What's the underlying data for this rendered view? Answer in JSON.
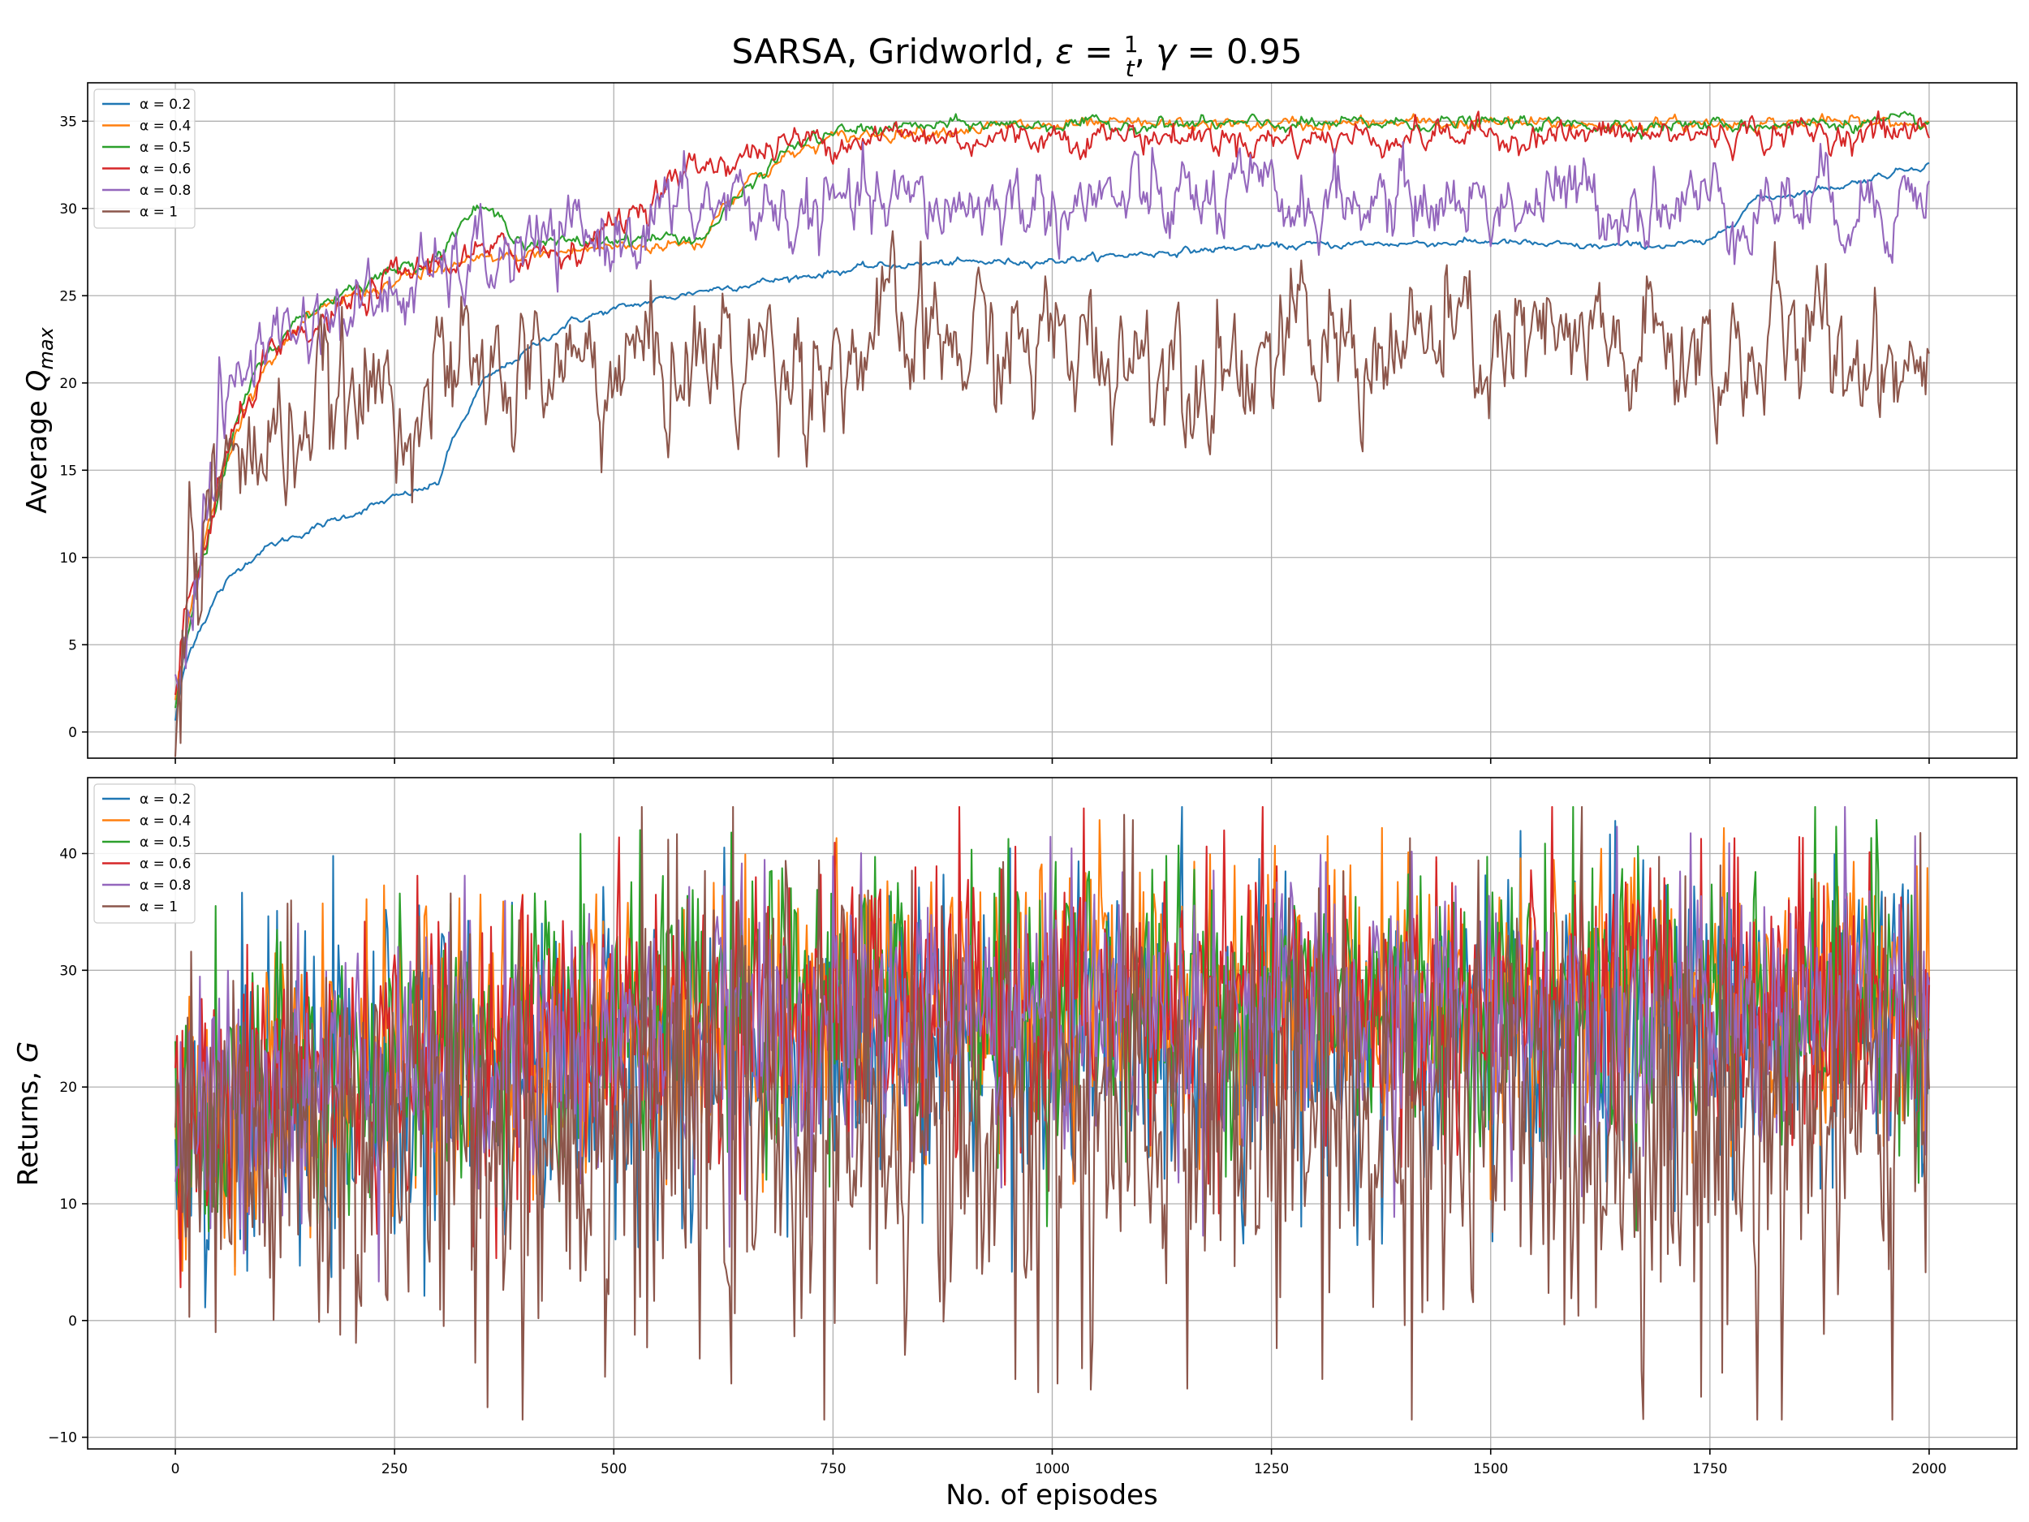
{
  "figure": {
    "title": "SARSA, Gridworld, ε = 1/t, γ = 0.95",
    "xlabel": "No. of episodes"
  },
  "chart_data": [
    {
      "type": "line",
      "title": "",
      "xlabel": "",
      "ylabel": "Average Q_max",
      "xlim": [
        -100,
        2100
      ],
      "ylim": [
        -1.5,
        37.2
      ],
      "x_ticks": [
        0,
        250,
        500,
        750,
        1000,
        1250,
        1500,
        1750,
        2000
      ],
      "x_tick_labels_visible": false,
      "y_ticks": [
        0,
        5,
        10,
        15,
        20,
        25,
        30,
        35
      ],
      "grid": true,
      "legend_position": "upper-left",
      "noise": "moderate",
      "series": [
        {
          "name": "α = 0.2",
          "color": "#1f77b4",
          "x": [
            0,
            10,
            25,
            50,
            75,
            100,
            150,
            200,
            250,
            300,
            310,
            350,
            400,
            450,
            500,
            600,
            700,
            800,
            900,
            1000,
            1100,
            1200,
            1300,
            1400,
            1500,
            1600,
            1700,
            1750,
            1800,
            1900,
            2000
          ],
          "values": [
            0.7,
            3.5,
            5.8,
            8.0,
            9.5,
            10.5,
            11.5,
            12.5,
            13.4,
            14.2,
            16.0,
            20.0,
            21.8,
            23.5,
            24.2,
            25.3,
            26.0,
            26.7,
            26.9,
            27.0,
            27.4,
            27.7,
            27.9,
            28.0,
            28.1,
            27.8,
            27.9,
            28.0,
            30.5,
            31.3,
            32.6
          ]
        },
        {
          "name": "α = 0.4",
          "color": "#ff7f0e",
          "x": [
            0,
            10,
            25,
            50,
            75,
            100,
            150,
            200,
            300,
            350,
            400,
            500,
            600,
            620,
            650,
            700,
            750,
            800,
            900,
            1000,
            1100,
            1200,
            1300,
            1400,
            1500,
            1600,
            1700,
            1800,
            1900,
            2000
          ],
          "values": [
            1.5,
            5.0,
            9.0,
            14.0,
            18.0,
            21.0,
            23.5,
            25.0,
            26.5,
            27.0,
            27.3,
            27.8,
            28.0,
            30.0,
            31.5,
            33.0,
            34.0,
            34.3,
            34.6,
            34.7,
            34.8,
            34.8,
            34.8,
            34.9,
            34.9,
            34.8,
            34.8,
            34.9,
            34.9,
            34.9
          ]
        },
        {
          "name": "α = 0.5",
          "color": "#2ca02c",
          "x": [
            0,
            10,
            25,
            50,
            75,
            100,
            150,
            200,
            250,
            300,
            330,
            350,
            380,
            400,
            450,
            500,
            600,
            650,
            700,
            750,
            800,
            900,
            1000,
            1100,
            1200,
            1300,
            1400,
            1500,
            1600,
            1700,
            1800,
            1900,
            2000
          ],
          "values": [
            1.5,
            5.5,
            8.5,
            13.5,
            18.5,
            21.5,
            24.0,
            25.5,
            26.5,
            27.3,
            29.5,
            30.0,
            29.0,
            28.0,
            28.0,
            28.3,
            28.3,
            31.0,
            33.5,
            34.3,
            34.6,
            34.8,
            34.8,
            34.8,
            34.8,
            34.8,
            34.9,
            34.9,
            34.8,
            34.8,
            34.8,
            34.9,
            34.9
          ]
        },
        {
          "name": "α = 0.6",
          "color": "#d62728",
          "x": [
            0,
            10,
            25,
            50,
            75,
            100,
            150,
            200,
            250,
            300,
            350,
            400,
            450,
            500,
            550,
            600,
            650,
            700,
            750,
            800,
            900,
            1000,
            1100,
            1200,
            1300,
            1400,
            1500,
            1600,
            1700,
            1800,
            1900,
            2000
          ],
          "values": [
            1.5,
            5.5,
            9.0,
            14.0,
            18.0,
            21.0,
            22.5,
            24.5,
            26.0,
            27.0,
            27.3,
            27.5,
            27.6,
            29.0,
            31.0,
            32.5,
            33.0,
            33.8,
            34.0,
            34.2,
            34.0,
            34.2,
            34.2,
            34.0,
            34.0,
            34.2,
            34.2,
            34.2,
            34.2,
            34.3,
            34.3,
            34.5
          ]
        },
        {
          "name": "α = 0.8",
          "color": "#9467bd",
          "x": [
            0,
            10,
            25,
            50,
            75,
            100,
            150,
            200,
            250,
            300,
            350,
            400,
            450,
            500,
            550,
            600,
            650,
            700,
            750,
            800,
            900,
            1000,
            1100,
            1200,
            1300,
            1400,
            1500,
            1600,
            1700,
            1800,
            1900,
            2000
          ],
          "values": [
            1.5,
            6.0,
            10.5,
            17.0,
            20.5,
            22.5,
            23.5,
            24.0,
            25.0,
            26.0,
            27.0,
            27.5,
            28.0,
            28.5,
            29.5,
            30.0,
            30.3,
            29.5,
            29.8,
            30.0,
            30.2,
            30.3,
            30.3,
            30.4,
            30.3,
            30.4,
            30.4,
            30.4,
            30.4,
            30.4,
            30.5,
            30.8
          ]
        },
        {
          "name": "α = 1",
          "color": "#8c564b",
          "x": [
            0,
            10,
            25,
            50,
            75,
            100,
            150,
            200,
            250,
            300,
            350,
            400,
            450,
            500,
            550,
            600,
            650,
            700,
            750,
            800,
            900,
            1000,
            1100,
            1200,
            1300,
            1400,
            1500,
            1600,
            1700,
            1800,
            1900,
            2000
          ],
          "values": [
            2.0,
            7.5,
            11.0,
            13.5,
            15.0,
            16.5,
            18.0,
            18.5,
            19.5,
            19.8,
            20.0,
            20.5,
            20.8,
            21.0,
            21.2,
            21.3,
            21.5,
            21.5,
            21.8,
            22.0,
            22.0,
            22.0,
            22.0,
            21.8,
            21.8,
            22.0,
            21.8,
            21.5,
            21.6,
            21.8,
            22.0,
            22.0
          ]
        }
      ]
    },
    {
      "type": "line",
      "title": "",
      "xlabel": "No. of episodes",
      "ylabel": "Returns, G",
      "xlim": [
        -100,
        2100
      ],
      "ylim": [
        -11,
        46.5
      ],
      "x_ticks": [
        0,
        250,
        500,
        750,
        1000,
        1250,
        1500,
        1750,
        2000
      ],
      "y_ticks": [
        -10,
        0,
        10,
        20,
        30,
        40
      ],
      "y_tick_labels": [
        "−10",
        "0",
        "10",
        "20",
        "30",
        "40"
      ],
      "grid": true,
      "legend_position": "upper-left",
      "noise": "high",
      "series": [
        {
          "name": "α = 0.2",
          "color": "#1f77b4",
          "x": [
            0,
            100,
            250,
            500,
            750,
            1000,
            1250,
            1500,
            1750,
            2000
          ],
          "values": [
            15,
            18,
            20,
            22,
            23,
            24,
            24,
            25,
            25,
            25
          ]
        },
        {
          "name": "α = 0.4",
          "color": "#ff7f0e",
          "x": [
            0,
            100,
            250,
            500,
            750,
            1000,
            1250,
            1500,
            1750,
            2000
          ],
          "values": [
            15,
            20,
            22,
            25,
            27,
            28,
            28,
            28,
            28,
            28
          ]
        },
        {
          "name": "α = 0.5",
          "color": "#2ca02c",
          "x": [
            0,
            100,
            250,
            500,
            750,
            1000,
            1250,
            1500,
            1750,
            2000
          ],
          "values": [
            15,
            20,
            22,
            25,
            27,
            28,
            28,
            28,
            28,
            28
          ]
        },
        {
          "name": "α = 0.6",
          "color": "#d62728",
          "x": [
            0,
            100,
            250,
            500,
            750,
            1000,
            1250,
            1500,
            1750,
            2000
          ],
          "values": [
            15,
            20,
            22,
            25,
            26,
            27,
            27,
            27,
            27,
            27
          ]
        },
        {
          "name": "α = 0.8",
          "color": "#9467bd",
          "x": [
            0,
            100,
            250,
            500,
            750,
            1000,
            1250,
            1500,
            1750,
            2000
          ],
          "values": [
            15,
            20,
            22,
            24,
            25,
            26,
            26,
            26,
            26,
            26
          ]
        },
        {
          "name": "α = 1",
          "color": "#8c564b",
          "x": [
            0,
            100,
            250,
            500,
            750,
            1000,
            1250,
            1500,
            1750,
            2000
          ],
          "values": [
            12,
            14,
            16,
            17,
            17,
            17,
            17,
            17,
            17,
            17
          ]
        }
      ]
    }
  ]
}
